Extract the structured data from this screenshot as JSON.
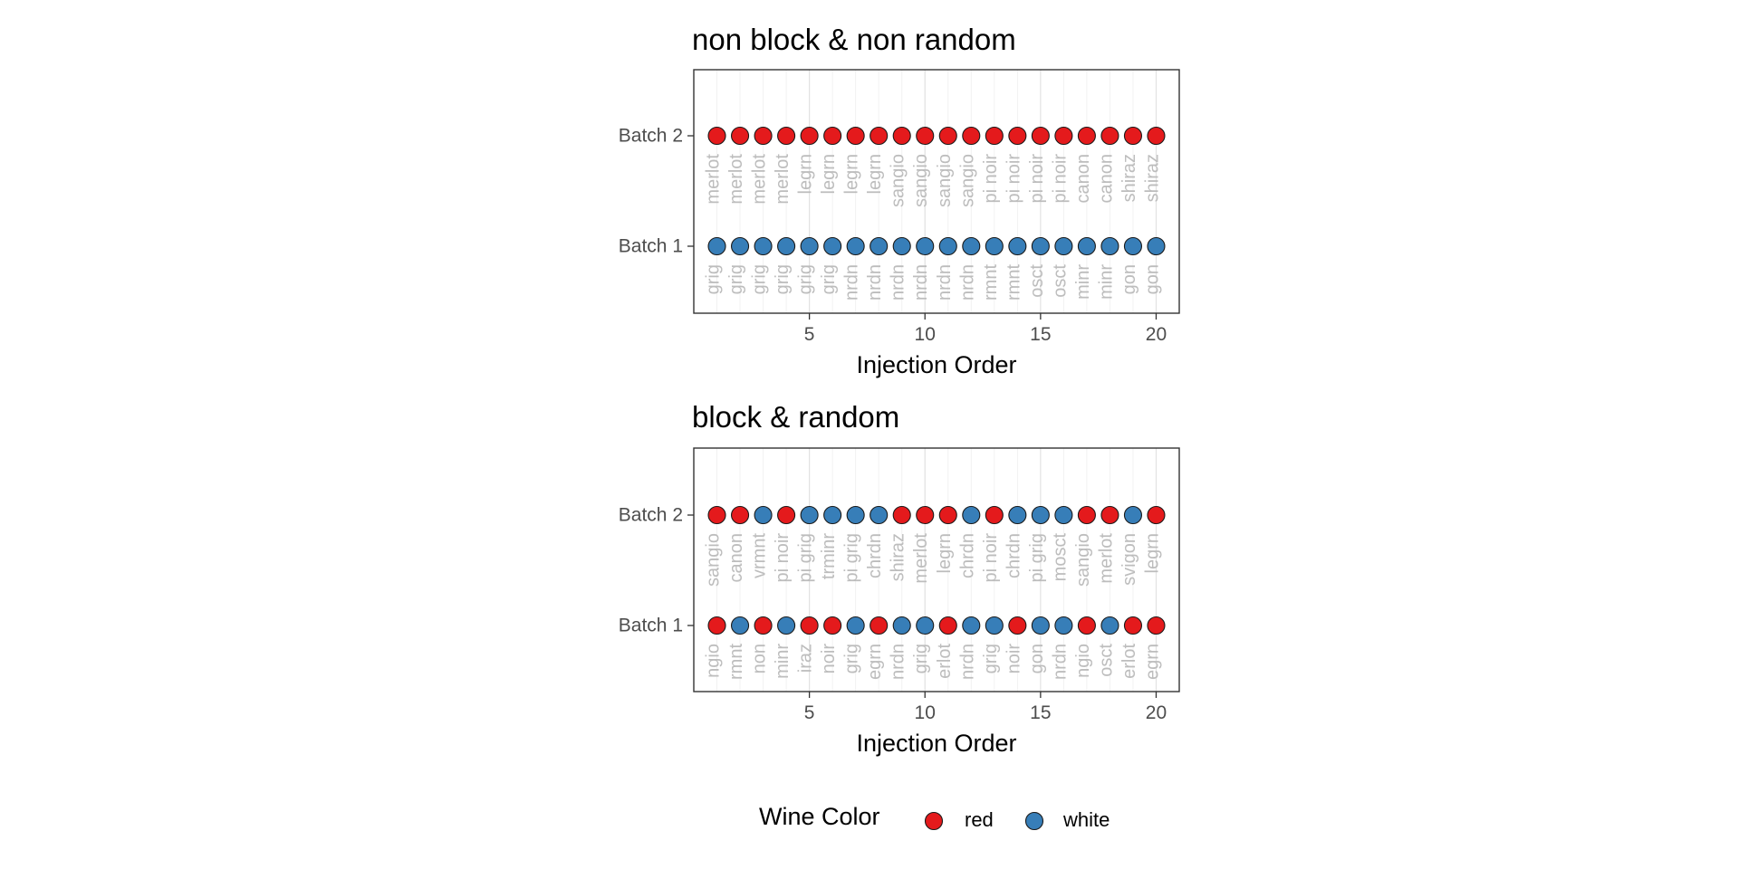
{
  "legend": {
    "title": "Wine Color",
    "items": [
      {
        "label": "red",
        "color": "#E41A1C"
      },
      {
        "label": "white",
        "color": "#377EB8"
      }
    ]
  },
  "chart_data": [
    {
      "type": "scatter",
      "title": "non block & non random",
      "xlabel": "Injection Order",
      "ylabel": "",
      "xlim": [
        0,
        21
      ],
      "xticks": [
        5,
        10,
        15,
        20
      ],
      "ycategories": [
        "Batch 1",
        "Batch 2"
      ],
      "grid": true,
      "series": [
        {
          "name": "Batch 2",
          "x": [
            1,
            2,
            3,
            4,
            5,
            6,
            7,
            8,
            9,
            10,
            11,
            12,
            13,
            14,
            15,
            16,
            17,
            18,
            19,
            20
          ],
          "colors": [
            "red",
            "red",
            "red",
            "red",
            "red",
            "red",
            "red",
            "red",
            "red",
            "red",
            "red",
            "red",
            "red",
            "red",
            "red",
            "red",
            "red",
            "red",
            "red",
            "red"
          ],
          "labels": [
            "merlot",
            "merlot",
            "merlot",
            "merlot",
            "legrn",
            "legrn",
            "legrn",
            "legrn",
            "sangio",
            "sangio",
            "sangio",
            "sangio",
            "pi noir",
            "pi noir",
            "pi noir",
            "pi noir",
            "canon",
            "canon",
            "shiraz",
            "shiraz"
          ]
        },
        {
          "name": "Batch 1",
          "x": [
            1,
            2,
            3,
            4,
            5,
            6,
            7,
            8,
            9,
            10,
            11,
            12,
            13,
            14,
            15,
            16,
            17,
            18,
            19,
            20
          ],
          "colors": [
            "white",
            "white",
            "white",
            "white",
            "white",
            "white",
            "white",
            "white",
            "white",
            "white",
            "white",
            "white",
            "white",
            "white",
            "white",
            "white",
            "white",
            "white",
            "white",
            "white"
          ],
          "labels": [
            "grig",
            "grig",
            "grig",
            "grig",
            "grig",
            "grig",
            "nrdn",
            "nrdn",
            "nrdn",
            "nrdn",
            "nrdn",
            "nrdn",
            "rmnt",
            "rmnt",
            "osct",
            "osct",
            "minr",
            "minr",
            "gon",
            "gon"
          ]
        }
      ]
    },
    {
      "type": "scatter",
      "title": "block & random",
      "xlabel": "Injection Order",
      "ylabel": "",
      "xlim": [
        0,
        21
      ],
      "xticks": [
        5,
        10,
        15,
        20
      ],
      "ycategories": [
        "Batch 1",
        "Batch 2"
      ],
      "grid": true,
      "series": [
        {
          "name": "Batch 2",
          "x": [
            1,
            2,
            3,
            4,
            5,
            6,
            7,
            8,
            9,
            10,
            11,
            12,
            13,
            14,
            15,
            16,
            17,
            18,
            19,
            20
          ],
          "colors": [
            "red",
            "red",
            "white",
            "red",
            "white",
            "white",
            "white",
            "white",
            "red",
            "red",
            "red",
            "white",
            "red",
            "white",
            "white",
            "white",
            "red",
            "red",
            "white",
            "red"
          ],
          "labels": [
            "sangio",
            "canon",
            "vrmnt",
            "pi noir",
            "pi grig",
            "trminr",
            "pi grig",
            "chrdn",
            "shiraz",
            "merlot",
            "legrn",
            "chrdn",
            "pi noir",
            "chrdn",
            "pi grig",
            "mosct",
            "sangio",
            "merlot",
            "svigon",
            "legrn"
          ]
        },
        {
          "name": "Batch 1",
          "x": [
            1,
            2,
            3,
            4,
            5,
            6,
            7,
            8,
            9,
            10,
            11,
            12,
            13,
            14,
            15,
            16,
            17,
            18,
            19,
            20
          ],
          "colors": [
            "red",
            "white",
            "red",
            "white",
            "red",
            "red",
            "white",
            "red",
            "white",
            "white",
            "red",
            "white",
            "white",
            "red",
            "white",
            "white",
            "red",
            "white",
            "red",
            "red"
          ],
          "labels": [
            "ngio",
            "rmnt",
            "non",
            "minr",
            "iraz",
            "noir",
            "grig",
            "egrn",
            "nrdn",
            "grig",
            "erlot",
            "nrdn",
            "grig",
            "noir",
            "gon",
            "nrdn",
            "ngio",
            "osct",
            "erlot",
            "egrn"
          ]
        }
      ]
    }
  ]
}
